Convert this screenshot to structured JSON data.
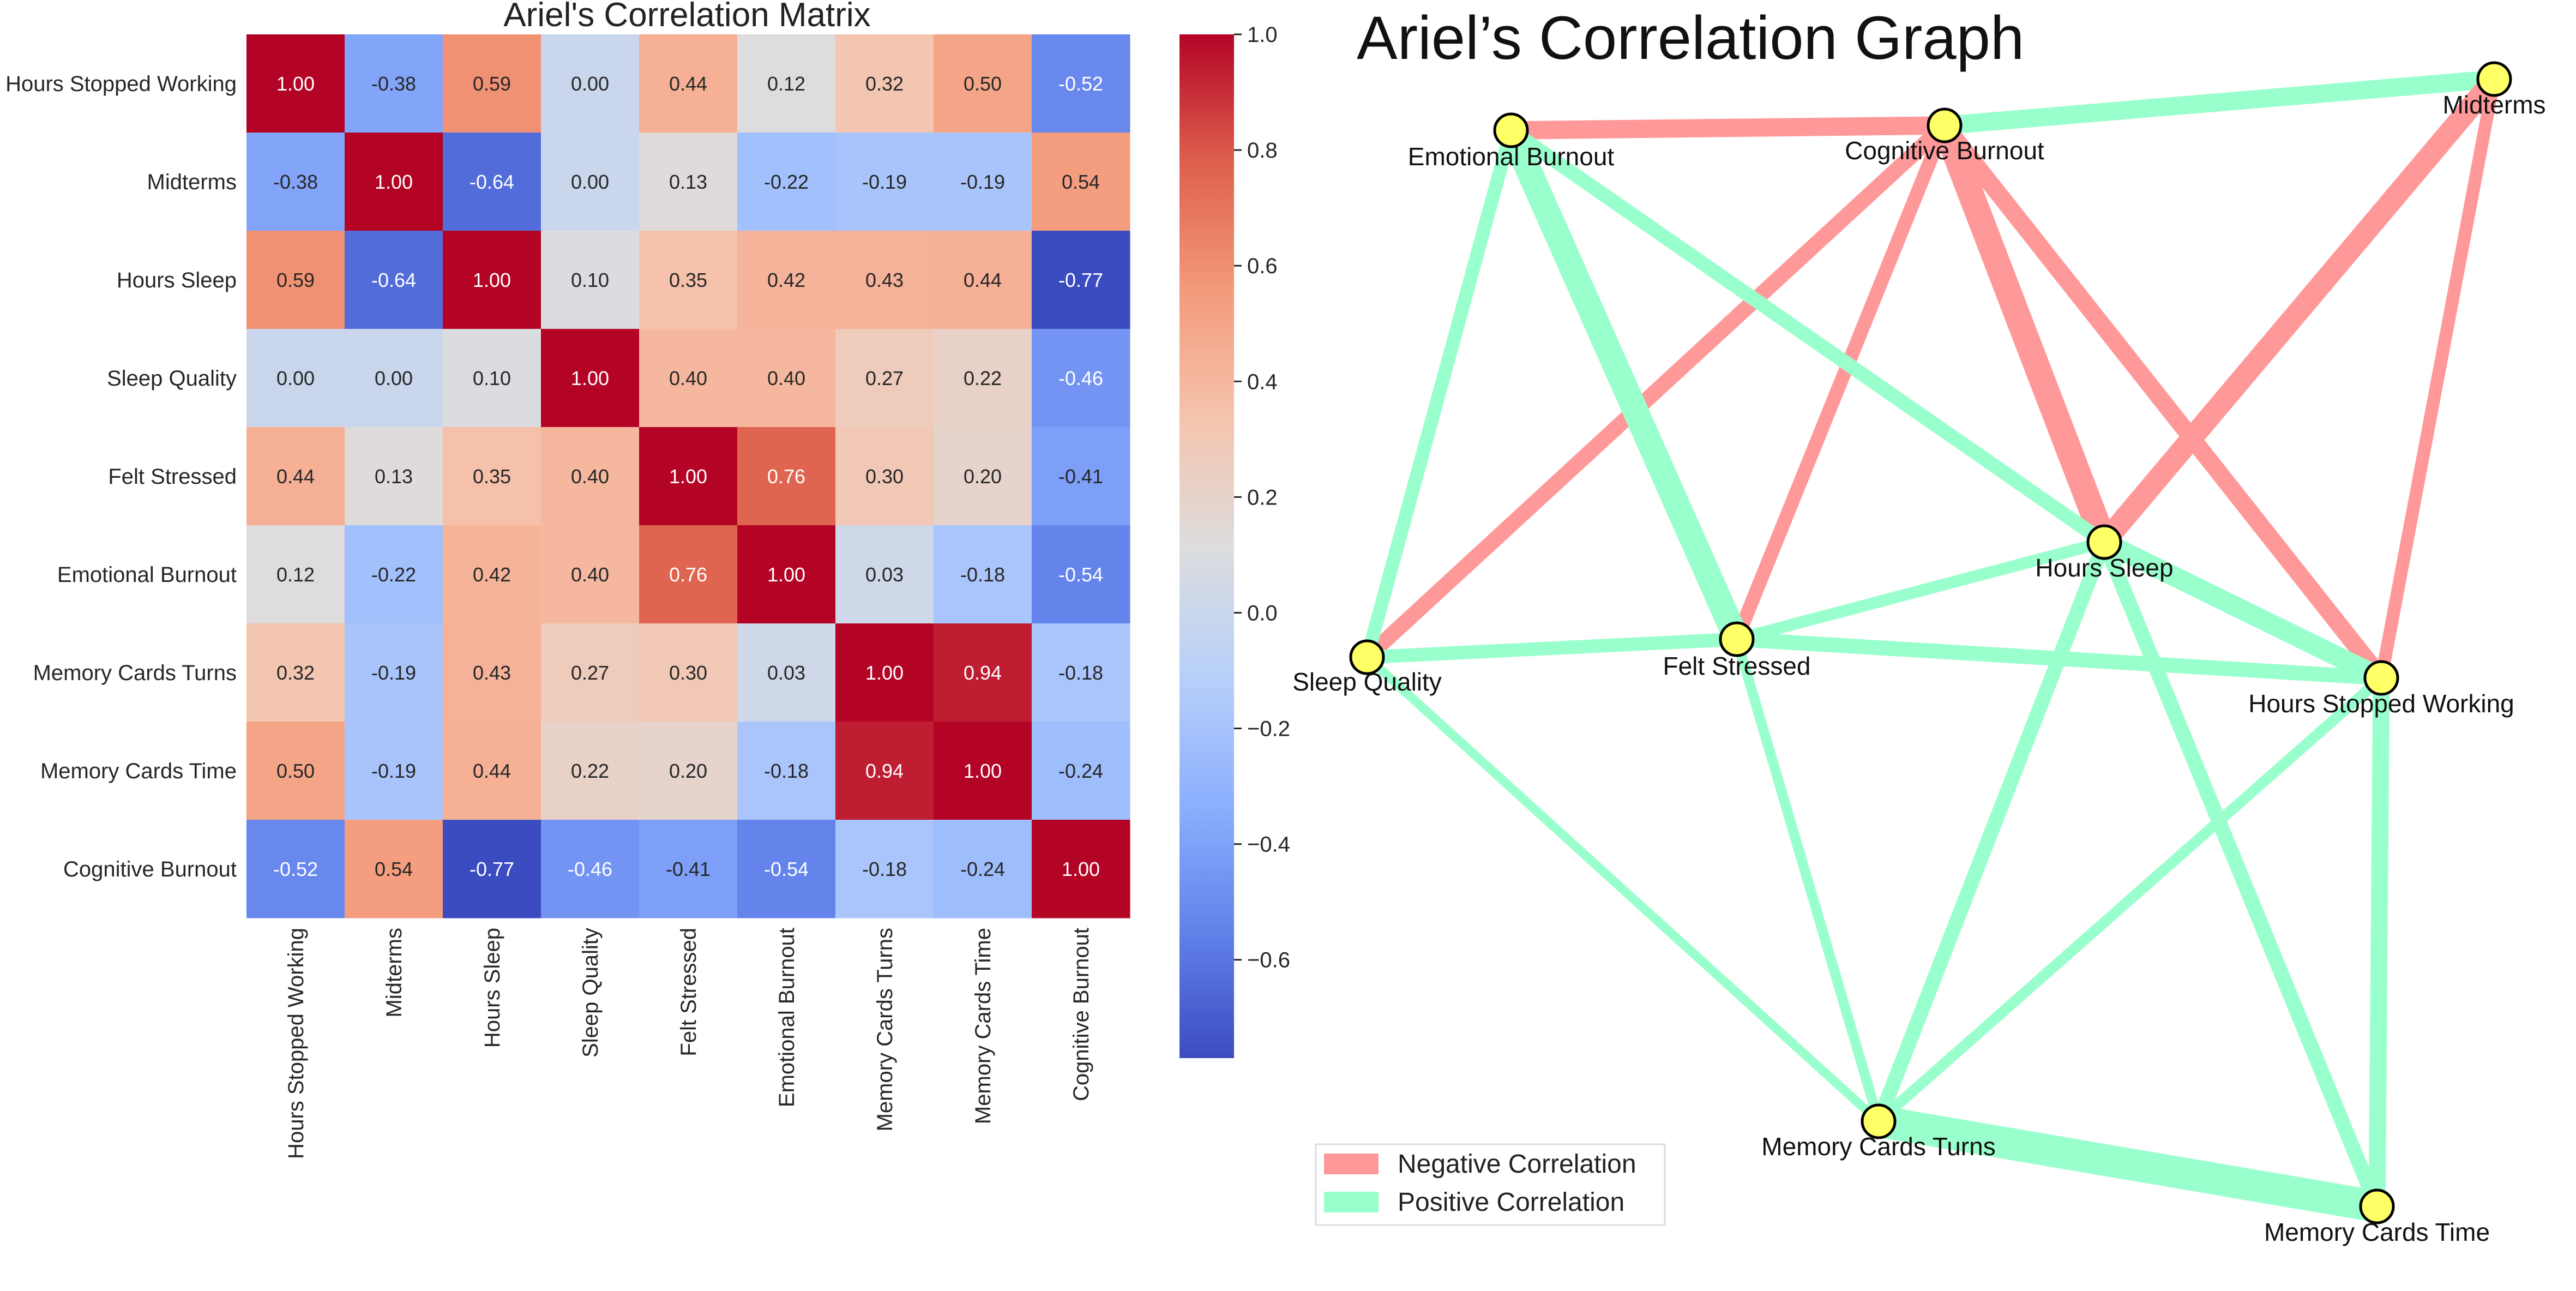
{
  "colors": {
    "negative": "#ff9999",
    "positive": "#99ffcc",
    "node": "#ffff66",
    "node_stroke": "#000000"
  },
  "chart_data": [
    {
      "type": "heatmap",
      "title": "Ariel's Correlation Matrix",
      "variables": [
        "Hours Stopped Working",
        "Midterms",
        "Hours Sleep",
        "Sleep Quality",
        "Felt Stressed",
        "Emotional Burnout",
        "Memory Cards Turns",
        "Memory Cards Time",
        "Cognitive Burnout"
      ],
      "value_labels": [
        [
          "1.00",
          "-0.38",
          "0.59",
          "0.00",
          "0.44",
          "0.12",
          "0.32",
          "0.50",
          "-0.52"
        ],
        [
          "-0.38",
          "1.00",
          "-0.64",
          "0.00",
          "0.13",
          "-0.22",
          "-0.19",
          "-0.19",
          "0.54"
        ],
        [
          "0.59",
          "-0.64",
          "1.00",
          "0.10",
          "0.35",
          "0.42",
          "0.43",
          "0.44",
          "-0.77"
        ],
        [
          "0.00",
          "0.00",
          "0.10",
          "1.00",
          "0.40",
          "0.40",
          "0.27",
          "0.22",
          "-0.46"
        ],
        [
          "0.44",
          "0.13",
          "0.35",
          "0.40",
          "1.00",
          "0.76",
          "0.30",
          "0.20",
          "-0.41"
        ],
        [
          "0.12",
          "-0.22",
          "0.42",
          "0.40",
          "0.76",
          "1.00",
          "0.03",
          "-0.18",
          "-0.54"
        ],
        [
          "0.32",
          "-0.19",
          "0.43",
          "0.27",
          "0.30",
          "0.03",
          "1.00",
          "0.94",
          "-0.18"
        ],
        [
          "0.50",
          "-0.19",
          "0.44",
          "0.22",
          "0.20",
          "-0.18",
          "0.94",
          "1.00",
          "-0.24"
        ],
        [
          "-0.52",
          "0.54",
          "-0.77",
          "-0.46",
          "-0.41",
          "-0.54",
          "-0.18",
          "-0.24",
          "1.00"
        ]
      ],
      "colormap": "coolwarm",
      "vmin": -0.77,
      "vmax": 1.0,
      "colorbar_ticks": [
        "1.0",
        "0.8",
        "0.6",
        "0.4",
        "0.2",
        "0.0",
        "−0.2",
        "−0.4",
        "−0.6"
      ]
    },
    {
      "type": "network",
      "title": "Ariel’s Correlation Graph",
      "nodes": [
        "Emotional Burnout",
        "Cognitive Burnout",
        "Midterms",
        "Hours Sleep",
        "Sleep Quality",
        "Felt Stressed",
        "Hours Stopped Working",
        "Memory Cards Turns",
        "Memory Cards Time"
      ],
      "edges": [
        {
          "source": "Emotional Burnout",
          "target": "Cognitive Burnout",
          "weight": -0.54
        },
        {
          "source": "Cognitive Burnout",
          "target": "Midterms",
          "weight": 0.54
        },
        {
          "source": "Midterms",
          "target": "Hours Sleep",
          "weight": -0.64
        },
        {
          "source": "Midterms",
          "target": "Hours Stopped Working",
          "weight": -0.38
        },
        {
          "source": "Cognitive Burnout",
          "target": "Sleep Quality",
          "weight": -0.46
        },
        {
          "source": "Cognitive Burnout",
          "target": "Felt Stressed",
          "weight": -0.41
        },
        {
          "source": "Cognitive Burnout",
          "target": "Hours Sleep",
          "weight": -0.77
        },
        {
          "source": "Cognitive Burnout",
          "target": "Hours Stopped Working",
          "weight": -0.52
        },
        {
          "source": "Emotional Burnout",
          "target": "Felt Stressed",
          "weight": 0.76
        },
        {
          "source": "Emotional Burnout",
          "target": "Sleep Quality",
          "weight": 0.4
        },
        {
          "source": "Emotional Burnout",
          "target": "Hours Sleep",
          "weight": 0.42
        },
        {
          "source": "Sleep Quality",
          "target": "Felt Stressed",
          "weight": 0.4
        },
        {
          "source": "Sleep Quality",
          "target": "Memory Cards Turns",
          "weight": 0.27
        },
        {
          "source": "Felt Stressed",
          "target": "Hours Sleep",
          "weight": 0.35
        },
        {
          "source": "Felt Stressed",
          "target": "Hours Stopped Working",
          "weight": 0.44
        },
        {
          "source": "Felt Stressed",
          "target": "Memory Cards Turns",
          "weight": 0.3
        },
        {
          "source": "Hours Sleep",
          "target": "Hours Stopped Working",
          "weight": 0.59
        },
        {
          "source": "Hours Sleep",
          "target": "Memory Cards Turns",
          "weight": 0.43
        },
        {
          "source": "Hours Sleep",
          "target": "Memory Cards Time",
          "weight": 0.44
        },
        {
          "source": "Hours Stopped Working",
          "target": "Memory Cards Turns",
          "weight": 0.32
        },
        {
          "source": "Hours Stopped Working",
          "target": "Memory Cards Time",
          "weight": 0.5
        },
        {
          "source": "Memory Cards Turns",
          "target": "Memory Cards Time",
          "weight": 0.94
        }
      ],
      "legend": [
        {
          "label": "Negative Correlation",
          "color": "#ff9999"
        },
        {
          "label": "Positive Correlation",
          "color": "#99ffcc"
        }
      ],
      "legend_position": "lower-left"
    }
  ]
}
